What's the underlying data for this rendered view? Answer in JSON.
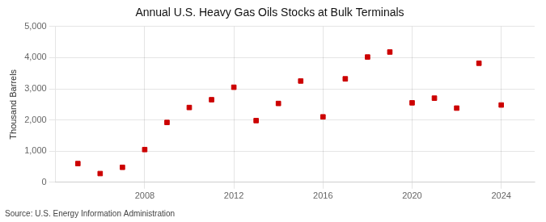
{
  "chart_data": {
    "type": "scatter",
    "title": "Annual U.S. Heavy Gas Oils Stocks at Bulk Terminals",
    "ylabel": "Thousand Barrels",
    "annotations": [
      "Source: U.S. Energy Information Administration"
    ],
    "x": [
      2005,
      2006,
      2007,
      2008,
      2009,
      2010,
      2011,
      2012,
      2013,
      2014,
      2015,
      2016,
      2017,
      2018,
      2019,
      2020,
      2021,
      2022,
      2023,
      2024
    ],
    "values": [
      600,
      280,
      480,
      1050,
      1920,
      2400,
      2650,
      3050,
      1980,
      2530,
      3250,
      2100,
      3320,
      4020,
      4180,
      2550,
      2700,
      2380,
      3820,
      2480
    ],
    "color": "#cc0000",
    "marker": "square",
    "xlim": [
      2004.0,
      2025.5
    ],
    "xticks": [
      2008,
      2012,
      2016,
      2020,
      2024
    ],
    "ylim": [
      0,
      5000
    ],
    "yticks": [
      0,
      {
        "value": 1000,
        "label": "1,000"
      },
      {
        "value": 2000,
        "label": "2,000"
      },
      {
        "value": 3000,
        "label": "3,000"
      },
      {
        "value": 4000,
        "label": "4,000"
      },
      {
        "value": 5000,
        "label": "5,000"
      }
    ],
    "grid": true
  }
}
